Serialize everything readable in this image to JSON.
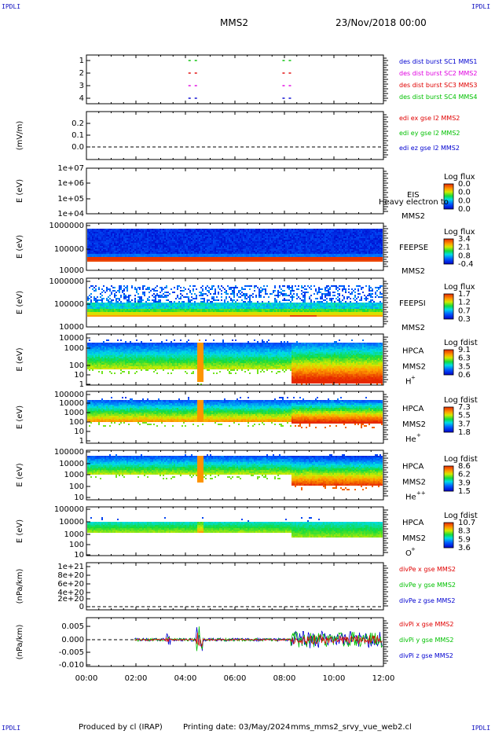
{
  "header": {
    "corner_tl": "IPDLI",
    "corner_tr": "IPDLI",
    "corner_bl": "IPDLI",
    "corner_br": "IPDLI",
    "spacecraft": "MMS2",
    "date": "23/Nov/2018 00:00"
  },
  "footer": {
    "producer": "Produced by cl (IRAP)",
    "printing": "Printing date: 03/May/2024",
    "script": "mms_mms2_srvy_vue_web2.cl"
  },
  "colors": {
    "red": "#e00000",
    "green": "#00c000",
    "blue": "#0000d0",
    "magenta": "#e000e0"
  },
  "chart_data": {
    "type": "heatmap",
    "x_ticks": [
      "00:00",
      "02:00",
      "04:00",
      "06:00",
      "08:00",
      "10:00",
      "12:00"
    ],
    "x_range_hours": [
      0,
      12
    ],
    "panels": [
      {
        "id": "burst",
        "type": "scatter",
        "yticks": [
          "1",
          "2",
          "3",
          "4"
        ],
        "legend": [
          {
            "text": "des dist burst SC1 MMS1",
            "color": "#0000d0"
          },
          {
            "text": "des dist burst SC2 MMS2",
            "color": "#e000e0"
          },
          {
            "text": "des dist burst SC3 MMS3",
            "color": "#e00000"
          },
          {
            "text": "des dist burst SC4 MMS4",
            "color": "#00c000"
          }
        ],
        "bursts_hours": [
          4.5,
          8.3
        ]
      },
      {
        "id": "edi",
        "type": "line",
        "ylabel": "(mV/m)",
        "yticks": [
          "0.2",
          "0.1",
          "0.0"
        ],
        "ylim": [
          -0.05,
          0.25
        ],
        "legend": [
          {
            "text": "edi ex gse l2 MMS2",
            "color": "#e00000"
          },
          {
            "text": "edi ey gse l2 MMS2",
            "color": "#00c000"
          },
          {
            "text": "edi ez gse l2 MMS2",
            "color": "#0000d0"
          }
        ]
      },
      {
        "id": "eis",
        "type": "heatmap",
        "ylabel": "E (eV)",
        "yticks": [
          "1e+07",
          "1e+06",
          "1e+05",
          "1e+04"
        ],
        "instrument": "EIS",
        "species": "Heavy electron to",
        "sc": "MMS2",
        "cbar_title": "Log flux",
        "cbar_ticks": [
          "0.0",
          "0.0",
          "0.0",
          "0.0"
        ]
      },
      {
        "id": "feepse",
        "type": "heatmap",
        "ylabel": "E (eV)",
        "yticks": [
          "1000000",
          "100000",
          "10000"
        ],
        "instrument": "FEEPSE",
        "sc": "MMS2",
        "cbar_title": "Log flux",
        "cbar_ticks": [
          "3.4",
          "2.1",
          "0.8",
          "-0.4"
        ]
      },
      {
        "id": "feepsi",
        "type": "heatmap",
        "ylabel": "E (eV)",
        "yticks": [
          "1000000",
          "100000",
          "10000"
        ],
        "instrument": "FEEPSI",
        "sc": "MMS2",
        "cbar_title": "Log flux",
        "cbar_ticks": [
          "1.7",
          "1.2",
          "0.7",
          "0.3"
        ]
      },
      {
        "id": "hpca_h",
        "type": "heatmap",
        "ylabel": "E (eV)",
        "yticks": [
          "10000",
          "1000",
          "100",
          "10",
          "1"
        ],
        "instrument": "HPCA",
        "sc": "MMS2",
        "species": "H",
        "charge": "+",
        "cbar_title": "Log fdist",
        "cbar_ticks": [
          "9.1",
          "6.3",
          "3.5",
          "0.6"
        ]
      },
      {
        "id": "hpca_he",
        "type": "heatmap",
        "ylabel": "E (eV)",
        "yticks": [
          "100000",
          "10000",
          "1000",
          "100",
          "10",
          "1"
        ],
        "instrument": "HPCA",
        "sc": "MMS2",
        "species": "He",
        "charge": "+",
        "cbar_title": "Log fdist",
        "cbar_ticks": [
          "7.3",
          "5.5",
          "3.7",
          "1.8"
        ]
      },
      {
        "id": "hpca_he2",
        "type": "heatmap",
        "ylabel": "E (eV)",
        "yticks": [
          "100000",
          "10000",
          "1000",
          "100",
          "10",
          "1"
        ],
        "instrument": "HPCA",
        "sc": "MMS2",
        "species": "He",
        "charge": "++",
        "cbar_title": "Log fdist",
        "cbar_ticks": [
          "8.6",
          "6.2",
          "3.9",
          "1.5"
        ]
      },
      {
        "id": "hpca_o",
        "type": "heatmap",
        "ylabel": "E (eV)",
        "yticks": [
          "100000",
          "10000",
          "1000",
          "100",
          "10",
          "1"
        ],
        "instrument": "HPCA",
        "sc": "MMS2",
        "species": "O",
        "charge": "+",
        "cbar_title": "Log fdist",
        "cbar_ticks": [
          "10.7",
          "8.3",
          "5.9",
          "3.6"
        ]
      },
      {
        "id": "divpe",
        "type": "line",
        "ylabel": "(nPa/km)",
        "yticks": [
          "1e+21",
          "8e+20",
          "6e+20",
          "4e+20",
          "2e+20",
          "0"
        ],
        "ylim": [
          0,
          1e+21
        ],
        "legend": [
          {
            "text": "divPe x gse MMS2",
            "color": "#e00000"
          },
          {
            "text": "divPe y gse MMS2",
            "color": "#00c000"
          },
          {
            "text": "divPe z gse MMS2",
            "color": "#0000d0"
          }
        ]
      },
      {
        "id": "divpi",
        "type": "line",
        "ylabel": "(nPa/km)",
        "yticks": [
          "0.005",
          "0.000",
          "-0.005",
          "-0.010"
        ],
        "ylim": [
          -0.011,
          0.007
        ],
        "legend": [
          {
            "text": "divPi x gse MMS2",
            "color": "#e00000"
          },
          {
            "text": "divPi y gse MMS2",
            "color": "#00c000"
          },
          {
            "text": "divPi z gse MMS2",
            "color": "#0000d0"
          }
        ]
      }
    ]
  }
}
